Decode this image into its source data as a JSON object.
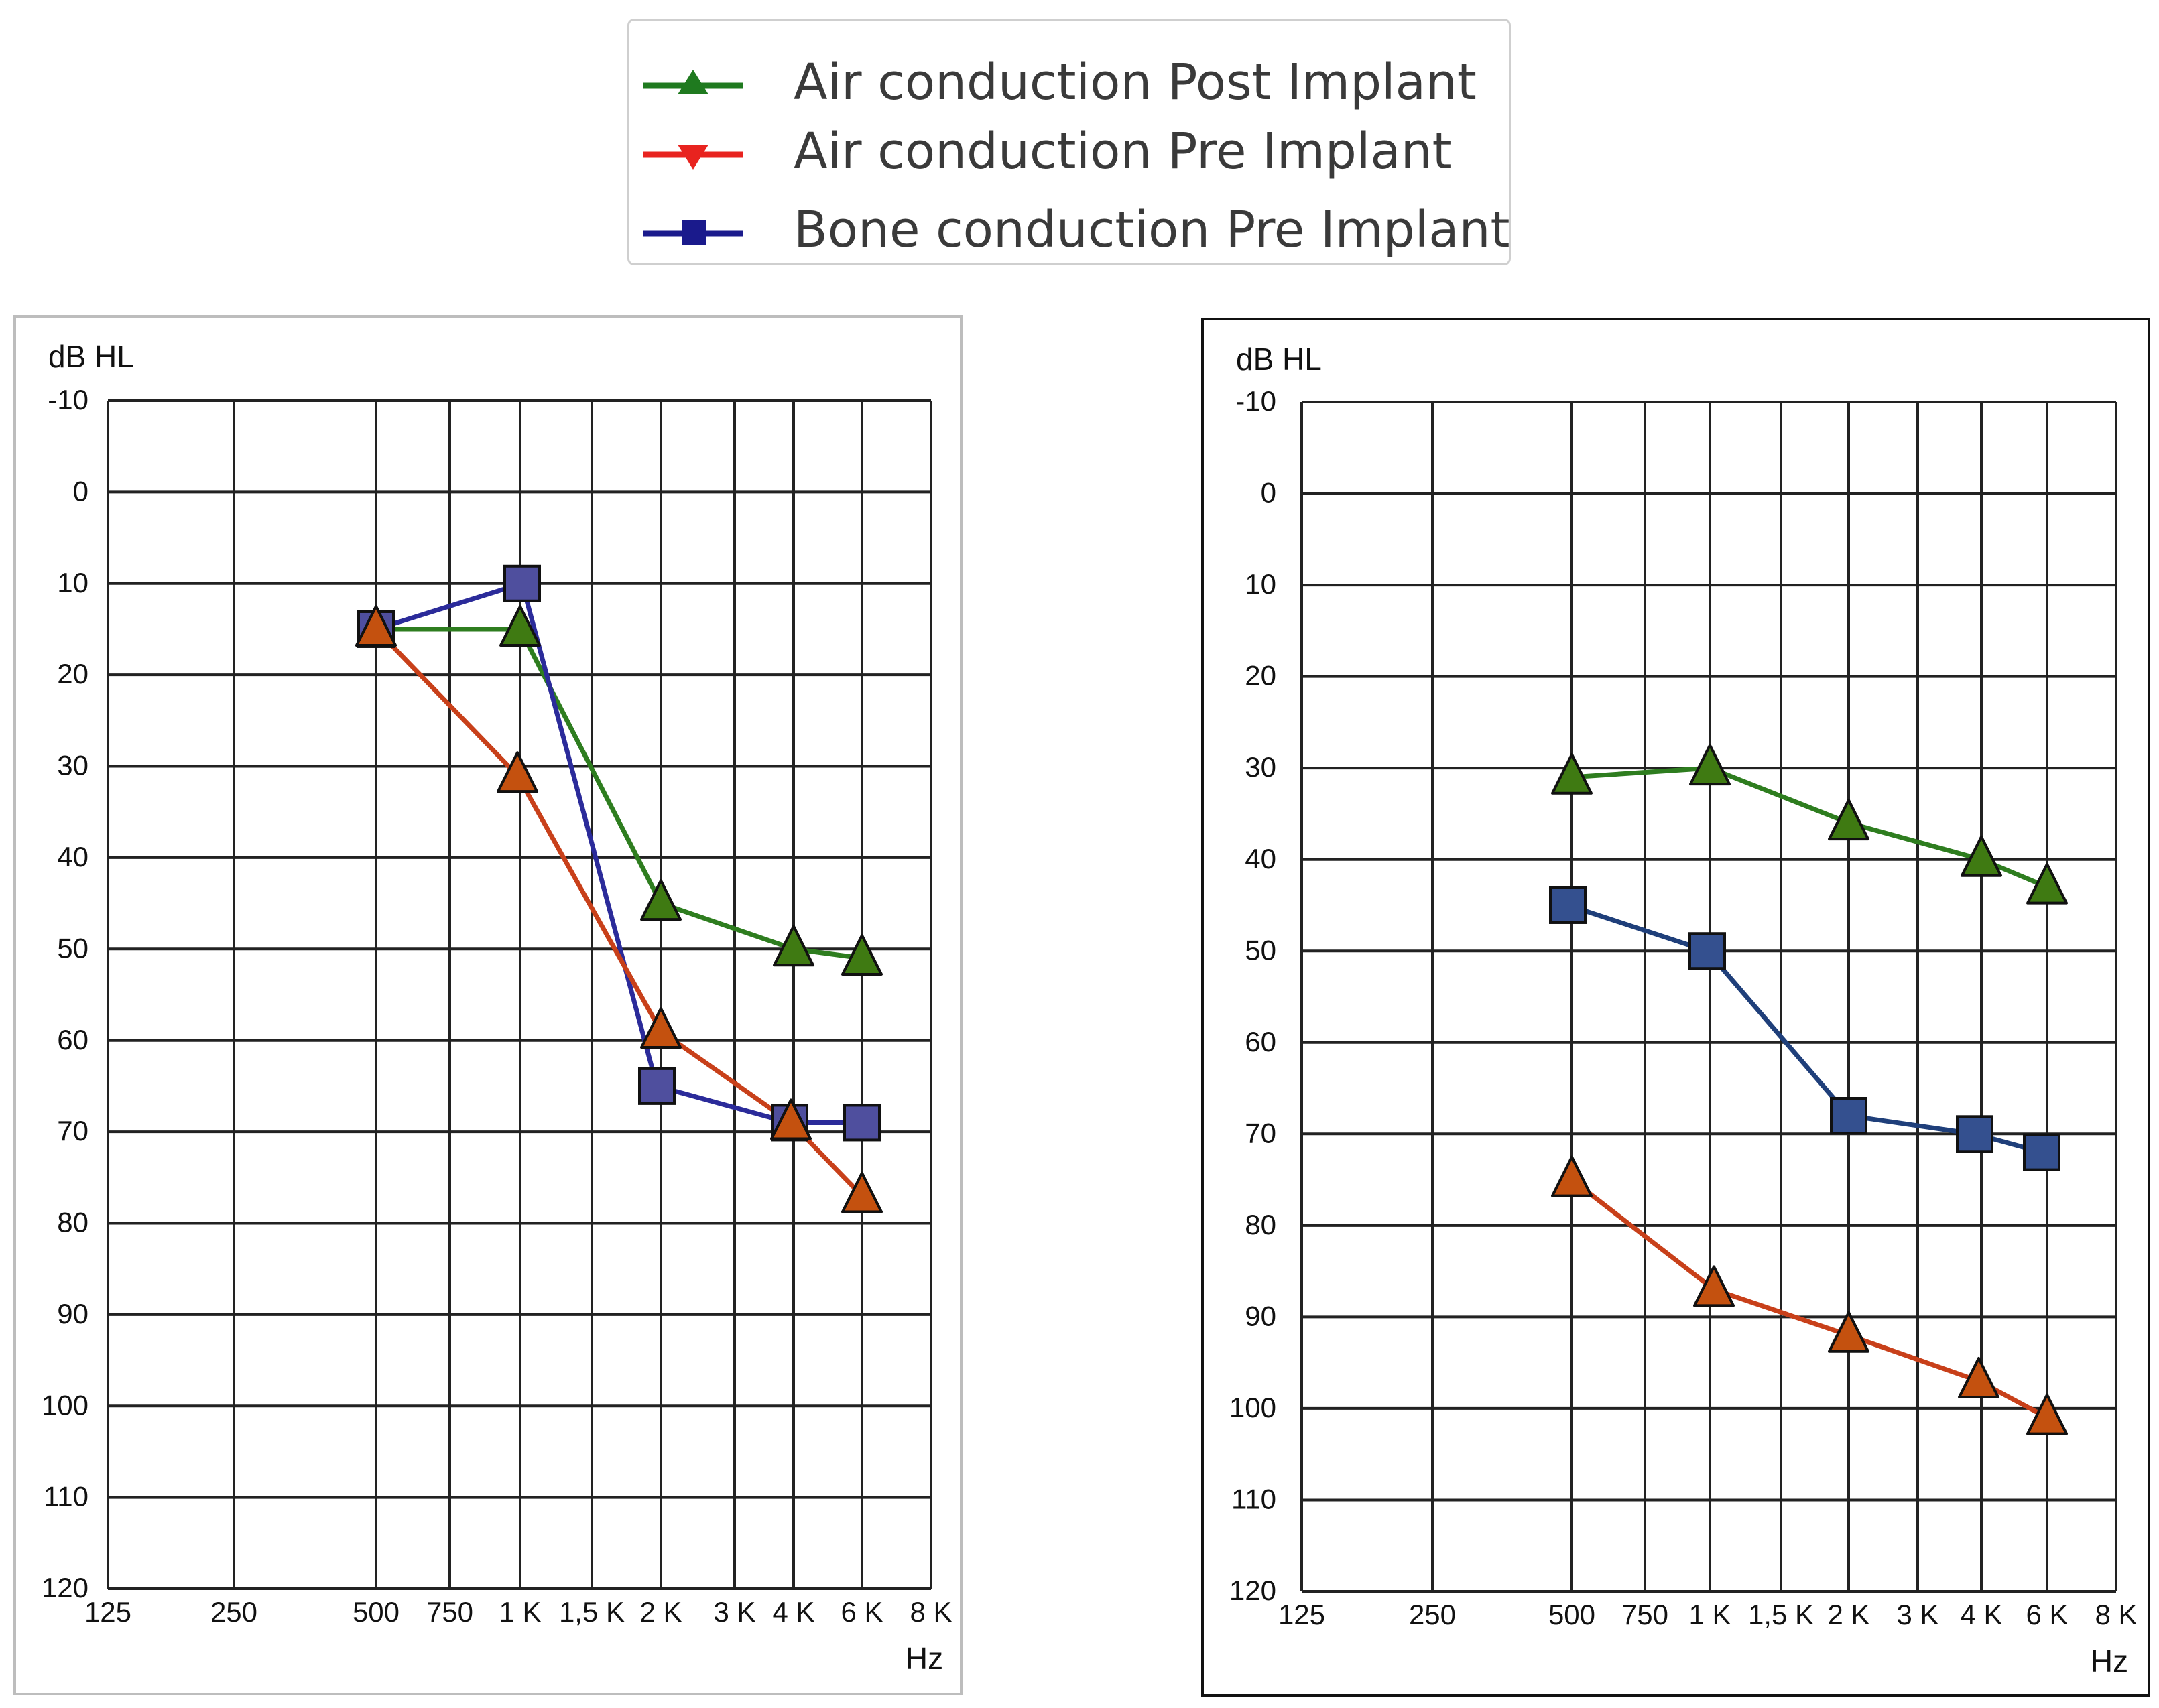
{
  "legend": {
    "items": [
      {
        "label": "Air conduction Post Implant",
        "color": "#1f7a1f",
        "marker": "triangle-up-icon"
      },
      {
        "label": "Air conduction Pre Implant",
        "color": "#e8231f",
        "marker": "triangle-down-icon"
      },
      {
        "label": "Bone conduction Pre Implant",
        "color": "#1a1a8c",
        "marker": "square-icon"
      }
    ]
  },
  "colors": {
    "post_line": "#2e7d1f",
    "post_marker": "#3f7a12",
    "pre_air_line": "#c8401a",
    "pre_air_marker": "#c4510f",
    "bone_line_left": "#2b2b9a",
    "bone_marker_left": "#4f4f9e",
    "bone_line_right": "#1f3f7a",
    "bone_marker_right": "#34508f"
  },
  "chart_data": [
    {
      "type": "line",
      "ylabel": "dB HL",
      "xlabel": "Hz",
      "y_ticks": [
        "-10",
        "0",
        "10",
        "20",
        "30",
        "40",
        "50",
        "60",
        "70",
        "80",
        "90",
        "100",
        "110",
        "120"
      ],
      "ylim": [
        -10,
        120
      ],
      "x_ticks": [
        "125",
        "250",
        "500",
        "750",
        "1 K",
        "1,5 K",
        "2 K",
        "3 K",
        "4 K",
        "6 K",
        "8 K"
      ],
      "x": [
        "500",
        "1 K",
        "2 K",
        "4 K",
        "6 K"
      ],
      "series": [
        {
          "name": "Air conduction Post Implant",
          "x": [
            "500",
            "1 K",
            "2 K",
            "4 K",
            "6 K"
          ],
          "values": [
            15,
            15,
            45,
            50,
            51
          ]
        },
        {
          "name": "Air conduction Pre Implant",
          "x": [
            "500",
            "1 K",
            "2 K",
            "4 K",
            "6 K"
          ],
          "values": [
            15,
            31,
            59,
            69,
            77
          ]
        },
        {
          "name": "Bone conduction Pre Implant",
          "x": [
            "500",
            "1 K",
            "2 K",
            "4 K",
            "6 K"
          ],
          "values": [
            15,
            10,
            65,
            69,
            69
          ]
        }
      ]
    },
    {
      "type": "line",
      "ylabel": "dB HL",
      "xlabel": "Hz",
      "y_ticks": [
        "-10",
        "0",
        "10",
        "20",
        "30",
        "40",
        "50",
        "60",
        "70",
        "80",
        "90",
        "100",
        "110",
        "120"
      ],
      "ylim": [
        -10,
        120
      ],
      "x_ticks": [
        "125",
        "250",
        "500",
        "750",
        "1 K",
        "1,5 K",
        "2 K",
        "3 K",
        "4 K",
        "6 K",
        "8 K"
      ],
      "x": [
        "500",
        "1 K",
        "2 K",
        "4 K",
        "6 K"
      ],
      "series": [
        {
          "name": "Air conduction Post Implant",
          "x": [
            "500",
            "1 K",
            "2 K",
            "4 K",
            "6 K"
          ],
          "values": [
            31,
            30,
            36,
            40,
            43
          ]
        },
        {
          "name": "Air conduction Pre Implant",
          "x": [
            "500",
            "1 K",
            "2 K",
            "4 K",
            "6 K"
          ],
          "values": [
            75,
            87,
            92,
            97,
            101
          ]
        },
        {
          "name": "Bone conduction Pre Implant",
          "x": [
            "500",
            "1 K",
            "2 K",
            "4 K",
            "6 K"
          ],
          "values": [
            45,
            50,
            68,
            70,
            72
          ]
        }
      ]
    }
  ]
}
